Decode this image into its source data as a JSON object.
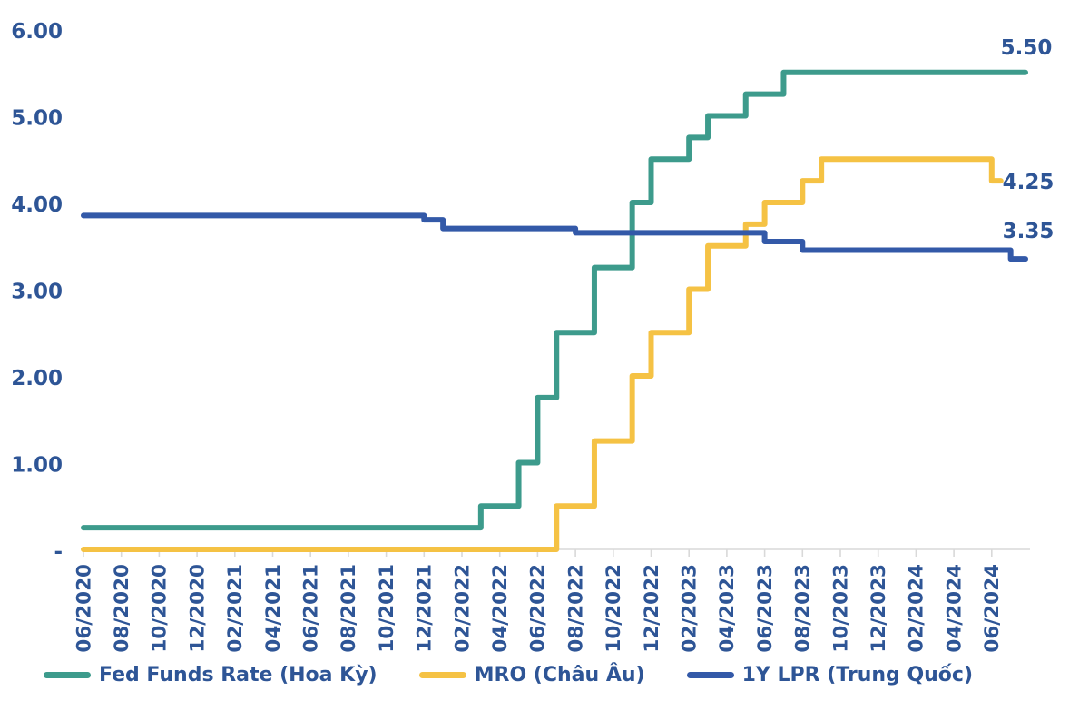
{
  "chart_data": {
    "type": "line",
    "line_style": "step",
    "title": "",
    "xlabel": "",
    "ylabel": "",
    "ylim": [
      0,
      6.0
    ],
    "grid": false,
    "legend_position": "bottom",
    "x_tick_rotation": -90,
    "x_start": "06/2020",
    "x_step_months": 1,
    "x_tick_labels": [
      "06/2020",
      "08/2020",
      "10/2020",
      "12/2020",
      "02/2021",
      "04/2021",
      "06/2021",
      "08/2021",
      "10/2021",
      "12/2021",
      "02/2022",
      "04/2022",
      "06/2022",
      "08/2022",
      "10/2022",
      "12/2022",
      "02/2023",
      "04/2023",
      "06/2023",
      "08/2023",
      "10/2023",
      "12/2023",
      "02/2024",
      "04/2024",
      "06/2024"
    ],
    "y_ticks": [
      {
        "label": "6.00",
        "value": 6.0
      },
      {
        "label": "5.00",
        "value": 5.0
      },
      {
        "label": "4.00",
        "value": 4.0
      },
      {
        "label": "3.00",
        "value": 3.0
      },
      {
        "label": "2.00",
        "value": 2.0
      },
      {
        "label": "1.00",
        "value": 1.0
      },
      {
        "label": "-",
        "value": 0.0
      }
    ],
    "series": [
      {
        "name": "Fed Funds Rate (Hoa Kỳ)",
        "color": "#3D9B8C",
        "end_label": "5.50",
        "values": [
          0.25,
          0.25,
          0.25,
          0.25,
          0.25,
          0.25,
          0.25,
          0.25,
          0.25,
          0.25,
          0.25,
          0.25,
          0.25,
          0.25,
          0.25,
          0.25,
          0.25,
          0.25,
          0.25,
          0.25,
          0.25,
          0.5,
          0.5,
          1.0,
          1.75,
          2.5,
          2.5,
          3.25,
          3.25,
          4.0,
          4.5,
          4.5,
          4.75,
          5.0,
          5.0,
          5.25,
          5.25,
          5.5,
          5.5,
          5.5,
          5.5,
          5.5,
          5.5,
          5.5,
          5.5,
          5.5,
          5.5,
          5.5,
          5.5,
          5.5
        ]
      },
      {
        "name": "MRO (Châu Âu)",
        "color": "#F5C244",
        "end_label": "4.25",
        "values": [
          0,
          0,
          0,
          0,
          0,
          0,
          0,
          0,
          0,
          0,
          0,
          0,
          0,
          0,
          0,
          0,
          0,
          0,
          0,
          0,
          0,
          0,
          0,
          0,
          0,
          0.5,
          0.5,
          1.25,
          1.25,
          2.0,
          2.5,
          2.5,
          3.0,
          3.5,
          3.5,
          3.75,
          4.0,
          4.0,
          4.25,
          4.5,
          4.5,
          4.5,
          4.5,
          4.5,
          4.5,
          4.5,
          4.5,
          4.5,
          4.25,
          4.25
        ]
      },
      {
        "name": "1Y LPR (Trung Quốc)",
        "color": "#3359A8",
        "end_label": "3.35",
        "values": [
          3.85,
          3.85,
          3.85,
          3.85,
          3.85,
          3.85,
          3.85,
          3.85,
          3.85,
          3.85,
          3.85,
          3.85,
          3.85,
          3.85,
          3.85,
          3.85,
          3.85,
          3.85,
          3.8,
          3.7,
          3.7,
          3.7,
          3.7,
          3.7,
          3.7,
          3.7,
          3.65,
          3.65,
          3.65,
          3.65,
          3.65,
          3.65,
          3.65,
          3.65,
          3.65,
          3.65,
          3.55,
          3.55,
          3.45,
          3.45,
          3.45,
          3.45,
          3.45,
          3.45,
          3.45,
          3.45,
          3.45,
          3.45,
          3.45,
          3.35
        ]
      }
    ],
    "axis_color": "#D9D9D9",
    "label_color": "#2E5596"
  },
  "legend": {
    "items": [
      {
        "label": "Fed Funds Rate (Hoa Kỳ)",
        "color": "#3D9B8C"
      },
      {
        "label": "MRO (Châu Âu)",
        "color": "#F5C244"
      },
      {
        "label": "1Y LPR (Trung Quốc)",
        "color": "#3359A8"
      }
    ]
  }
}
